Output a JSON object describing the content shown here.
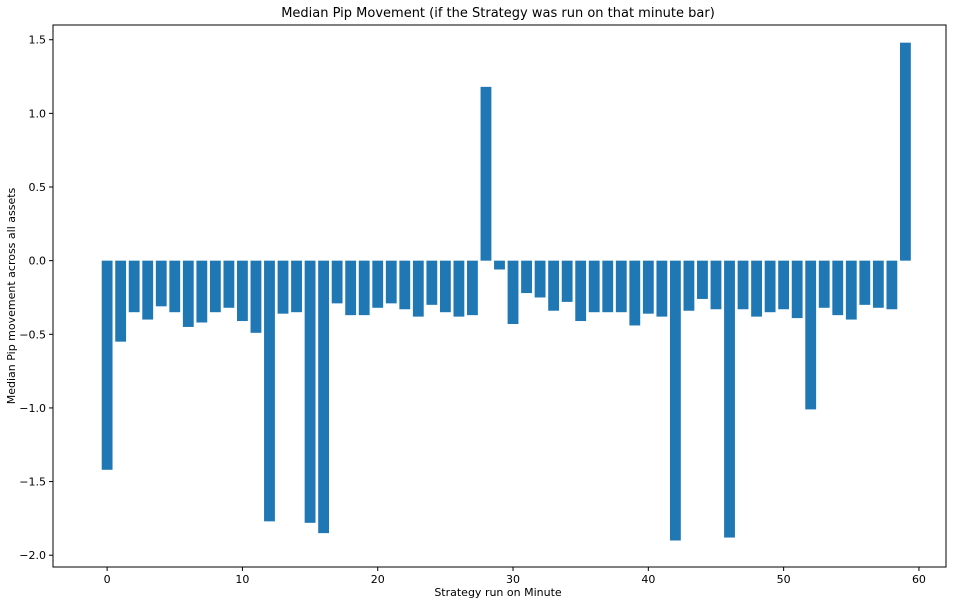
{
  "chart_data": {
    "type": "bar",
    "title": "Median Pip Movement (if the Strategy was run on that minute bar)",
    "xlabel": "Strategy run on Minute",
    "ylabel": "Median Pip movement across all assets",
    "xlim": [
      -4,
      62
    ],
    "ylim": [
      -2.08,
      1.6
    ],
    "xticks": [
      "0",
      "10",
      "20",
      "30",
      "40",
      "50",
      "60"
    ],
    "yticks": [
      "−2.0",
      "−1.5",
      "−1.0",
      "−0.5",
      "0.0",
      "0.5",
      "1.0",
      "1.5"
    ],
    "grid": false,
    "bar_color": "#1f77b4",
    "categories": [
      0,
      1,
      2,
      3,
      4,
      5,
      6,
      7,
      8,
      9,
      10,
      11,
      12,
      13,
      14,
      15,
      16,
      17,
      18,
      19,
      20,
      21,
      22,
      23,
      24,
      25,
      26,
      27,
      28,
      29,
      30,
      31,
      32,
      33,
      34,
      35,
      36,
      37,
      38,
      39,
      40,
      41,
      42,
      43,
      44,
      45,
      46,
      47,
      48,
      49,
      50,
      51,
      52,
      53,
      54,
      55,
      56,
      57,
      58,
      59
    ],
    "values": [
      -1.42,
      -0.55,
      -0.35,
      -0.4,
      -0.31,
      -0.35,
      -0.45,
      -0.42,
      -0.35,
      -0.32,
      -0.41,
      -0.49,
      -1.77,
      -0.36,
      -0.35,
      -1.78,
      -1.85,
      -0.29,
      -0.37,
      -0.37,
      -0.32,
      -0.29,
      -0.33,
      -0.38,
      -0.3,
      -0.35,
      -0.38,
      -0.37,
      1.18,
      -0.06,
      -0.43,
      -0.22,
      -0.25,
      -0.34,
      -0.28,
      -0.41,
      -0.35,
      -0.35,
      -0.35,
      -0.44,
      -0.36,
      -0.38,
      -1.9,
      -0.34,
      -0.26,
      -0.33,
      -1.88,
      -0.33,
      -0.38,
      -0.35,
      -0.33,
      -0.39,
      -1.01,
      -0.32,
      -0.37,
      -0.4,
      -0.3,
      -0.32,
      -0.33,
      1.48
    ]
  }
}
